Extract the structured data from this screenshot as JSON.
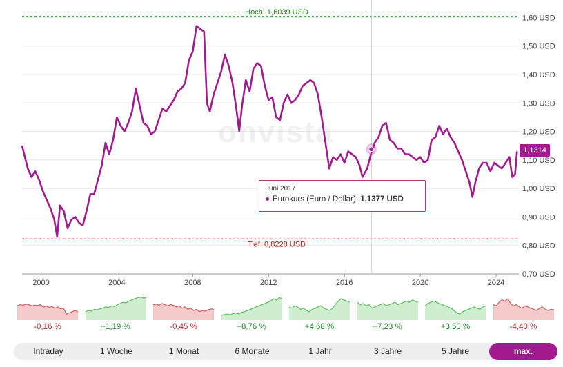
{
  "colors": {
    "accent": "#a21b8e",
    "high": "#1c8b1c",
    "low": "#b31b1b",
    "up_fill": "#cfeecf",
    "up_line": "#5cbd5c",
    "down_fill": "#f5caca",
    "down_line": "#d35b5b"
  },
  "watermark": "onvista",
  "chart_data": {
    "type": "line",
    "title": "Eurokurs (Euro / Dollar)",
    "x_unit": "year",
    "y_unit": "USD",
    "xlim": [
      1999.0,
      2025.2
    ],
    "ylim": [
      0.7,
      1.63
    ],
    "x_ticks": [
      2000,
      2004,
      2008,
      2012,
      2016,
      2020,
      2024
    ],
    "y_ticks": [
      {
        "value": 0.7,
        "label": "0,70 USD"
      },
      {
        "value": 0.8,
        "label": "0,80 USD"
      },
      {
        "value": 0.9,
        "label": "0,90 USD"
      },
      {
        "value": 1.0,
        "label": "1,00 USD"
      },
      {
        "value": 1.1,
        "label": "1,10 USD"
      },
      {
        "value": 1.2,
        "label": "1,20 USD"
      },
      {
        "value": 1.3,
        "label": "1,30 USD"
      },
      {
        "value": 1.4,
        "label": "1,40 USD"
      },
      {
        "value": 1.5,
        "label": "1,50 USD"
      },
      {
        "value": 1.6,
        "label": "1,60 USD"
      }
    ],
    "high": {
      "value": 1.6039,
      "label": "Hoch: 1,6039 USD"
    },
    "low": {
      "value": 0.8228,
      "label": "Tief: 0,8228 USD"
    },
    "current": {
      "value": 1.1314,
      "label": "1,1314"
    },
    "series": [
      {
        "name": "Eurokurs (Euro / Dollar)",
        "points": [
          [
            1999.0,
            1.15
          ],
          [
            1999.3,
            1.07
          ],
          [
            1999.5,
            1.04
          ],
          [
            1999.7,
            1.06
          ],
          [
            1999.9,
            1.03
          ],
          [
            2000.1,
            0.99
          ],
          [
            2000.3,
            0.96
          ],
          [
            2000.5,
            0.93
          ],
          [
            2000.7,
            0.89
          ],
          [
            2000.85,
            0.83
          ],
          [
            2001.0,
            0.94
          ],
          [
            2001.2,
            0.92
          ],
          [
            2001.4,
            0.86
          ],
          [
            2001.6,
            0.89
          ],
          [
            2001.8,
            0.9
          ],
          [
            2002.0,
            0.88
          ],
          [
            2002.2,
            0.87
          ],
          [
            2002.4,
            0.92
          ],
          [
            2002.6,
            0.98
          ],
          [
            2002.8,
            0.98
          ],
          [
            2003.0,
            1.03
          ],
          [
            2003.2,
            1.08
          ],
          [
            2003.4,
            1.16
          ],
          [
            2003.6,
            1.12
          ],
          [
            2003.8,
            1.17
          ],
          [
            2004.0,
            1.25
          ],
          [
            2004.2,
            1.22
          ],
          [
            2004.4,
            1.2
          ],
          [
            2004.6,
            1.23
          ],
          [
            2004.8,
            1.27
          ],
          [
            2005.0,
            1.35
          ],
          [
            2005.2,
            1.29
          ],
          [
            2005.4,
            1.23
          ],
          [
            2005.6,
            1.22
          ],
          [
            2005.8,
            1.19
          ],
          [
            2006.0,
            1.2
          ],
          [
            2006.2,
            1.24
          ],
          [
            2006.4,
            1.28
          ],
          [
            2006.6,
            1.27
          ],
          [
            2006.8,
            1.29
          ],
          [
            2007.0,
            1.31
          ],
          [
            2007.2,
            1.34
          ],
          [
            2007.4,
            1.35
          ],
          [
            2007.6,
            1.37
          ],
          [
            2007.8,
            1.45
          ],
          [
            2008.0,
            1.48
          ],
          [
            2008.2,
            1.57
          ],
          [
            2008.4,
            1.56
          ],
          [
            2008.6,
            1.55
          ],
          [
            2008.75,
            1.3
          ],
          [
            2008.9,
            1.27
          ],
          [
            2009.1,
            1.33
          ],
          [
            2009.3,
            1.37
          ],
          [
            2009.5,
            1.41
          ],
          [
            2009.7,
            1.47
          ],
          [
            2009.9,
            1.43
          ],
          [
            2010.1,
            1.37
          ],
          [
            2010.3,
            1.28
          ],
          [
            2010.45,
            1.2
          ],
          [
            2010.6,
            1.29
          ],
          [
            2010.8,
            1.38
          ],
          [
            2011.0,
            1.34
          ],
          [
            2011.2,
            1.42
          ],
          [
            2011.4,
            1.44
          ],
          [
            2011.6,
            1.43
          ],
          [
            2011.8,
            1.36
          ],
          [
            2012.0,
            1.31
          ],
          [
            2012.2,
            1.32
          ],
          [
            2012.4,
            1.25
          ],
          [
            2012.6,
            1.24
          ],
          [
            2012.8,
            1.3
          ],
          [
            2013.0,
            1.33
          ],
          [
            2013.2,
            1.3
          ],
          [
            2013.4,
            1.31
          ],
          [
            2013.6,
            1.33
          ],
          [
            2013.8,
            1.36
          ],
          [
            2014.0,
            1.37
          ],
          [
            2014.2,
            1.38
          ],
          [
            2014.4,
            1.37
          ],
          [
            2014.6,
            1.33
          ],
          [
            2014.8,
            1.25
          ],
          [
            2015.0,
            1.16
          ],
          [
            2015.2,
            1.07
          ],
          [
            2015.4,
            1.11
          ],
          [
            2015.6,
            1.1
          ],
          [
            2015.8,
            1.12
          ],
          [
            2016.0,
            1.09
          ],
          [
            2016.2,
            1.13
          ],
          [
            2016.4,
            1.12
          ],
          [
            2016.6,
            1.11
          ],
          [
            2016.8,
            1.08
          ],
          [
            2016.95,
            1.04
          ],
          [
            2017.2,
            1.07
          ],
          [
            2017.4,
            1.12
          ],
          [
            2017.6,
            1.16
          ],
          [
            2017.8,
            1.18
          ],
          [
            2018.0,
            1.22
          ],
          [
            2018.2,
            1.23
          ],
          [
            2018.4,
            1.17
          ],
          [
            2018.6,
            1.16
          ],
          [
            2018.8,
            1.14
          ],
          [
            2019.0,
            1.14
          ],
          [
            2019.2,
            1.12
          ],
          [
            2019.4,
            1.12
          ],
          [
            2019.6,
            1.11
          ],
          [
            2019.8,
            1.1
          ],
          [
            2020.0,
            1.11
          ],
          [
            2020.2,
            1.09
          ],
          [
            2020.4,
            1.1
          ],
          [
            2020.6,
            1.17
          ],
          [
            2020.8,
            1.18
          ],
          [
            2021.0,
            1.22
          ],
          [
            2021.2,
            1.19
          ],
          [
            2021.4,
            1.21
          ],
          [
            2021.6,
            1.18
          ],
          [
            2021.8,
            1.16
          ],
          [
            2022.0,
            1.13
          ],
          [
            2022.2,
            1.1
          ],
          [
            2022.4,
            1.06
          ],
          [
            2022.6,
            1.02
          ],
          [
            2022.75,
            0.97
          ],
          [
            2022.9,
            1.02
          ],
          [
            2023.1,
            1.07
          ],
          [
            2023.3,
            1.09
          ],
          [
            2023.5,
            1.09
          ],
          [
            2023.7,
            1.06
          ],
          [
            2023.9,
            1.09
          ],
          [
            2024.1,
            1.08
          ],
          [
            2024.3,
            1.07
          ],
          [
            2024.5,
            1.09
          ],
          [
            2024.7,
            1.11
          ],
          [
            2024.85,
            1.04
          ],
          [
            2025.0,
            1.05
          ],
          [
            2025.1,
            1.13
          ]
        ]
      }
    ],
    "tooltip_point": {
      "x": 2017.42,
      "value": 1.1377
    }
  },
  "tooltip": {
    "date": "Juni 2017",
    "series_label": "Eurokurs (Euro / Dollar):",
    "value": "1,1377 USD"
  },
  "minis": [
    {
      "period": "Intraday",
      "change": "-0,16 %",
      "direction": "down",
      "values": [
        0.55,
        0.6,
        0.58,
        0.62,
        0.6,
        0.55,
        0.58,
        0.56,
        0.6,
        0.5,
        0.55,
        0.48,
        0.52,
        0.45,
        0.5,
        0.42,
        0.45,
        0.2,
        0.25,
        0.3,
        0.35,
        0.3
      ]
    },
    {
      "period": "1 Woche",
      "change": "+1,19 %",
      "direction": "up",
      "values": [
        0.3,
        0.35,
        0.32,
        0.4,
        0.38,
        0.42,
        0.45,
        0.5,
        0.48,
        0.55,
        0.52,
        0.6,
        0.65,
        0.7,
        0.68,
        0.75,
        0.8,
        0.85,
        0.9,
        0.92,
        0.88,
        0.9
      ]
    },
    {
      "period": "1 Monat",
      "change": "-0,45 %",
      "direction": "down",
      "values": [
        0.6,
        0.62,
        0.58,
        0.65,
        0.6,
        0.55,
        0.6,
        0.58,
        0.5,
        0.55,
        0.45,
        0.5,
        0.4,
        0.45,
        0.35,
        0.4,
        0.3,
        0.35,
        0.32,
        0.38,
        0.42,
        0.4
      ]
    },
    {
      "period": "6 Monate",
      "change": "+8,76 %",
      "direction": "up",
      "values": [
        0.15,
        0.18,
        0.2,
        0.17,
        0.22,
        0.25,
        0.2,
        0.28,
        0.3,
        0.35,
        0.4,
        0.45,
        0.5,
        0.55,
        0.6,
        0.65,
        0.7,
        0.75,
        0.85,
        0.8,
        0.9,
        0.85
      ]
    },
    {
      "period": "1 Jahr",
      "change": "+4,68 %",
      "direction": "up",
      "values": [
        0.5,
        0.45,
        0.55,
        0.5,
        0.4,
        0.45,
        0.35,
        0.3,
        0.4,
        0.45,
        0.5,
        0.55,
        0.45,
        0.4,
        0.35,
        0.45,
        0.6,
        0.75,
        0.85,
        0.8,
        0.75,
        0.7
      ]
    },
    {
      "period": "3 Jahre",
      "change": "+7,23 %",
      "direction": "up",
      "values": [
        0.7,
        0.6,
        0.65,
        0.55,
        0.6,
        0.45,
        0.5,
        0.55,
        0.6,
        0.65,
        0.55,
        0.6,
        0.65,
        0.7,
        0.6,
        0.65,
        0.7,
        0.75,
        0.7,
        0.8,
        0.75,
        0.7
      ]
    },
    {
      "period": "5 Jahre",
      "change": "+3,50 %",
      "direction": "up",
      "values": [
        0.55,
        0.65,
        0.7,
        0.75,
        0.7,
        0.65,
        0.6,
        0.55,
        0.5,
        0.45,
        0.35,
        0.25,
        0.2,
        0.3,
        0.35,
        0.4,
        0.45,
        0.5,
        0.45,
        0.4,
        0.5,
        0.55
      ]
    },
    {
      "period": "max.",
      "change": "-4,40 %",
      "direction": "down",
      "values": [
        0.6,
        0.55,
        0.7,
        0.8,
        0.75,
        0.85,
        0.65,
        0.55,
        0.6,
        0.5,
        0.45,
        0.55,
        0.5,
        0.45,
        0.4,
        0.35,
        0.45,
        0.5,
        0.4,
        0.35,
        0.4,
        0.38
      ]
    }
  ],
  "tabs": [
    {
      "label": "Intraday",
      "active": false
    },
    {
      "label": "1 Woche",
      "active": false
    },
    {
      "label": "1 Monat",
      "active": false
    },
    {
      "label": "6 Monate",
      "active": false
    },
    {
      "label": "1 Jahr",
      "active": false
    },
    {
      "label": "3 Jahre",
      "active": false
    },
    {
      "label": "5 Jahre",
      "active": false
    },
    {
      "label": "max.",
      "active": true
    }
  ]
}
